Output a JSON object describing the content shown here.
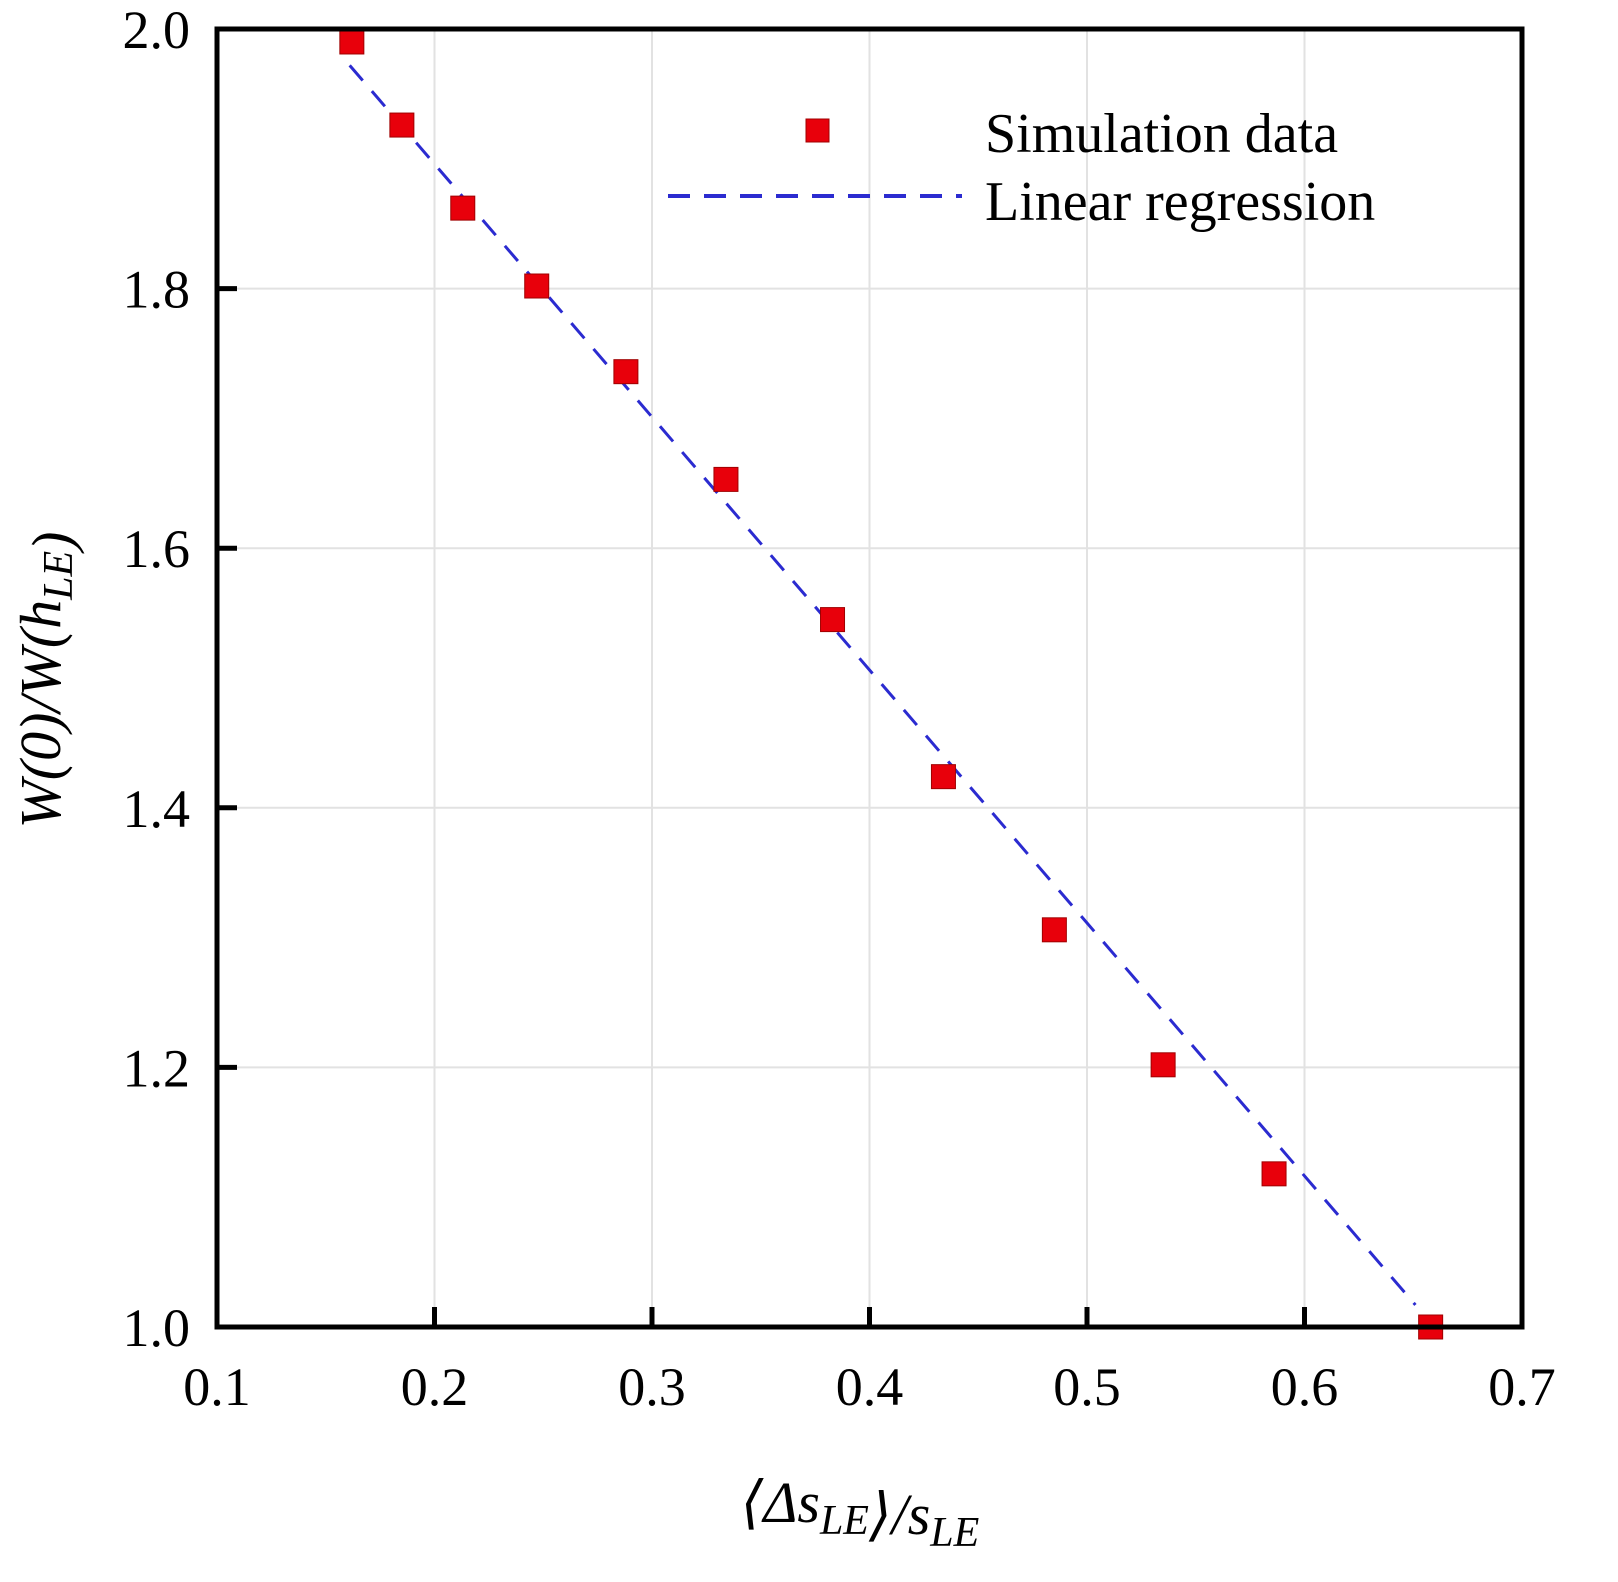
{
  "chart_data": {
    "type": "scatter",
    "title": "",
    "xlabel": "⟨Δs_LE⟩/s_LE",
    "ylabel": "W(0)/W(h_LE)",
    "xlim": [
      0.1,
      0.7
    ],
    "ylim": [
      1.0,
      2.0
    ],
    "xticks": [
      "0.1",
      "0.2",
      "0.3",
      "0.4",
      "0.5",
      "0.6",
      "0.7"
    ],
    "yticks": [
      "1.0",
      "1.2",
      "1.4",
      "1.6",
      "1.8",
      "2.0"
    ],
    "grid": true,
    "legend_position": "top-right",
    "series": [
      {
        "name": "Simulation data",
        "kind": "markers",
        "marker": "square",
        "color": "#e8000b",
        "x": [
          0.162,
          0.185,
          0.213,
          0.247,
          0.288,
          0.334,
          0.383,
          0.434,
          0.485,
          0.535,
          0.586,
          0.658
        ],
        "y": [
          1.99,
          1.926,
          1.862,
          1.802,
          1.736,
          1.653,
          1.545,
          1.424,
          1.306,
          1.202,
          1.118,
          1.0
        ]
      },
      {
        "name": "Linear regression",
        "kind": "dashed-line",
        "color": "#2b2bd0",
        "x": [
          0.161,
          0.651
        ],
        "y": [
          1.972,
          1.017
        ]
      }
    ]
  }
}
